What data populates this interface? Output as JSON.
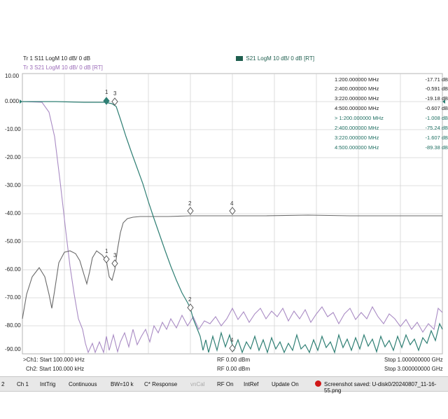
{
  "header": {
    "tr1": "Tr 1  S11  LogM  10 dB/  0 dB",
    "tr3": "Tr 3  S21  LogM  10 dB/  0 dB  [RT]",
    "tr_active_badge": "Tr",
    "tr_active": "S21  LogM  10 dB/  0 dB  [RT]"
  },
  "y_axis": {
    "labels": [
      "10.00",
      "0.000",
      "-10.00",
      "-20.00",
      "-30.00",
      "-40.00",
      "-50.00",
      "-60.00",
      "-70.00",
      "-80.00",
      "-90.00"
    ]
  },
  "marker_table": [
    {
      "freq": "1:200.000000 MHz",
      "val": "-17.71 dB"
    },
    {
      "freq": "2:400.000000 MHz",
      "val": "-0.591 dB"
    },
    {
      "freq": "3:220.000000 MHz",
      "val": "-19.18 dB"
    },
    {
      "freq": "4:500.000000 MHz",
      "val": "-0.607 dB"
    },
    {
      "freq": "> 1:200.000000 MHz",
      "val": "-1.008 dB"
    },
    {
      "freq": "2:400.000000 MHz",
      "val": "-75.24 dB"
    },
    {
      "freq": "3:220.000000 MHz",
      "val": "-1.607 dB"
    },
    {
      "freq": "4:500.000000 MHz",
      "val": "-89.38 dB"
    }
  ],
  "marker_labels": {
    "m1": "1",
    "m2": "2",
    "m3": "3",
    "m4": "4"
  },
  "footer": {
    "ch1_start": ">Ch1: Start 100.000 kHz",
    "ch2_start": "Ch2: Start 100.000 kHz",
    "rf1": "RF 0.00 dBm",
    "rf2": "RF 0.00 dBm",
    "stop1": "Stop 1.000000000 GHz",
    "stop2": "Stop 3.000000000 GHz"
  },
  "statusbar": {
    "num": "2",
    "channel": "Ch 1",
    "trigger": "IntTrig",
    "sweep": "Continuous",
    "bw": "BW=10 k",
    "response": "C* Response",
    "cal": "vnCal",
    "rf": "RF On",
    "ref": "IntRef",
    "update": "Update On",
    "message": "Screenshot saved: U-disk0/20240807_11-16-55.png"
  },
  "colors": {
    "s11": "#6a6a6a",
    "s21_ch1": "#2f7f74",
    "s21_ch2": "#a98bc4",
    "badge": "#1f5f4f",
    "record": "#d01818"
  }
}
